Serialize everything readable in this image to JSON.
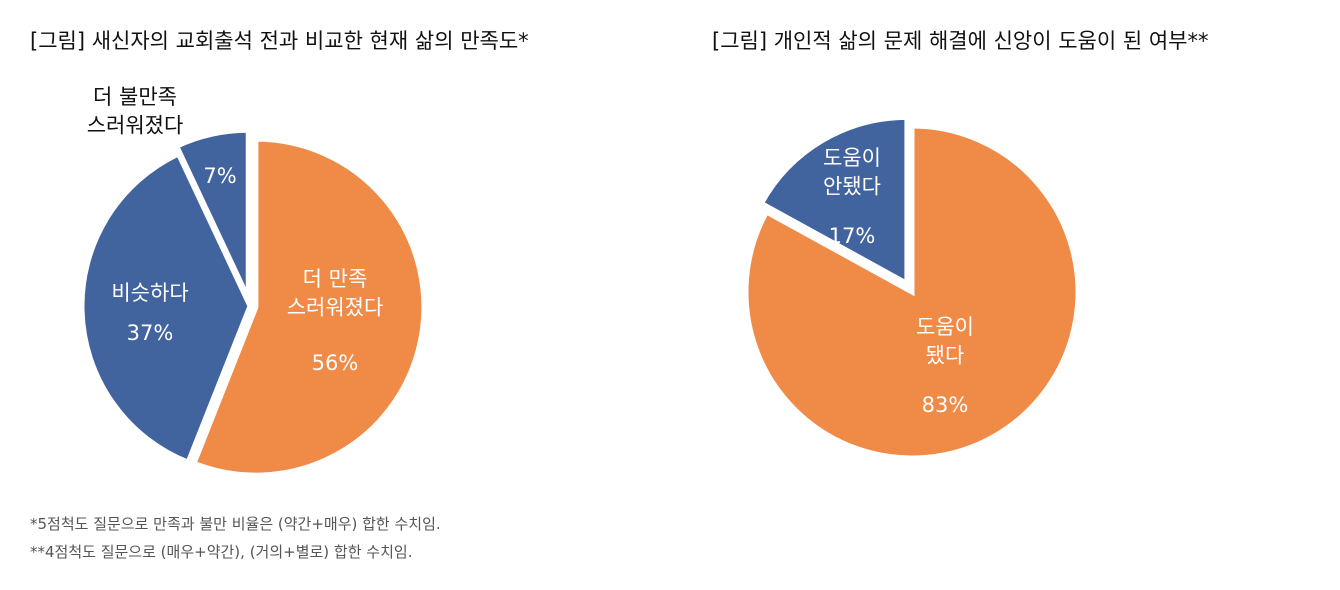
{
  "chart_data": [
    {
      "type": "pie",
      "title": "[그림] 새신자의 교회출석 전과 비교한 현재 삶의 만족도*",
      "categories": [
        "더 만족\n스러워졌다",
        "비슷하다",
        "더 불만족\n스러워졌다"
      ],
      "values": [
        56,
        37,
        7
      ],
      "value_labels": [
        "56%",
        "37%",
        "7%"
      ],
      "colors": [
        "#ef8a47",
        "#41649f",
        "#41649f"
      ]
    },
    {
      "type": "pie",
      "title": "[그림] 개인적 삶의 문제 해결에 신앙이 도움이 된 여부**",
      "categories": [
        "도움이\n됐다",
        "도움이\n안됐다"
      ],
      "values": [
        83,
        17
      ],
      "value_labels": [
        "83%",
        "17%"
      ],
      "colors": [
        "#ef8a47",
        "#41649f"
      ]
    }
  ],
  "notes": [
    "*5점척도 질문으로 만족과 불만 비율은 (약간+매우) 합한 수치임.",
    "**4점척도 질문으로 (매우+약간), (거의+별로) 합한 수치임."
  ]
}
